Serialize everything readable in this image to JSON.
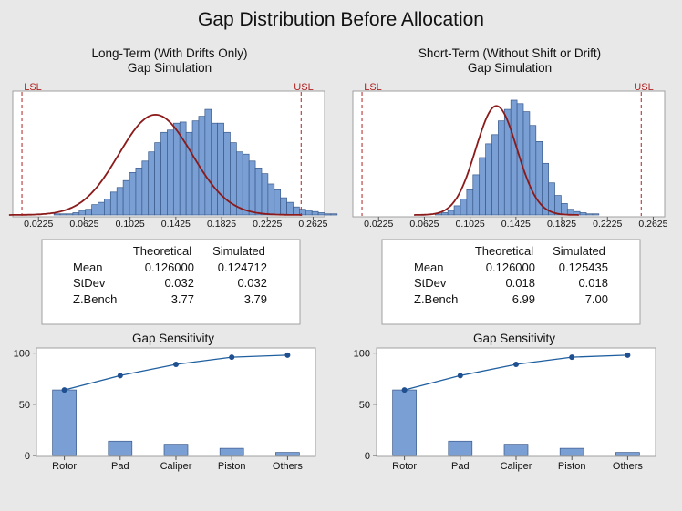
{
  "page_title": "Gap Distribution Before Allocation",
  "colors": {
    "background": "#e8e8e8",
    "bar_fill": "#7a9fd4",
    "bar_stroke": "#3a5a8a",
    "fit_curve": "#8b1a1a",
    "spec_line": "#b22222",
    "cum_line": "#1f5f9f"
  },
  "panels": [
    {
      "title_line1": "Long-Term (With Drifts Only)",
      "title_line2": "Gap Simulation",
      "lsl_label": "LSL",
      "usl_label": "USL",
      "table": {
        "headers": [
          "",
          "Theoretical",
          "Simulated"
        ],
        "rows": [
          {
            "label": "Mean",
            "theoretical": "0.126000",
            "simulated": "0.124712"
          },
          {
            "label": "StDev",
            "theoretical": "0.032",
            "simulated": "0.032"
          },
          {
            "label": "Z.Bench",
            "theoretical": "3.77",
            "simulated": "3.79"
          }
        ]
      },
      "sensitivity_title": "Gap Sensitivity"
    },
    {
      "title_line1": "Short-Term (Without Shift or Drift)",
      "title_line2": "Gap Simulation",
      "lsl_label": "LSL",
      "usl_label": "USL",
      "table": {
        "headers": [
          "",
          "Theoretical",
          "Simulated"
        ],
        "rows": [
          {
            "label": "Mean",
            "theoretical": "0.126000",
            "simulated": "0.125435"
          },
          {
            "label": "StDev",
            "theoretical": "0.018",
            "simulated": "0.018"
          },
          {
            "label": "Z.Bench",
            "theoretical": "6.99",
            "simulated": "7.00"
          }
        ]
      },
      "sensitivity_title": "Gap Sensitivity"
    }
  ],
  "chart_data": [
    {
      "type": "histogram",
      "title": "Long-Term (With Drifts Only) Gap Simulation",
      "x_ticks": [
        "0.0225",
        "0.0625",
        "0.1025",
        "0.1425",
        "0.1825",
        "0.2225",
        "0.2625"
      ],
      "xlim": [
        0.0,
        0.2725
      ],
      "lsl": 0.008,
      "usl": 0.252,
      "bin_width": 0.0055,
      "bin_start": 0.036,
      "bin_counts": [
        1,
        1,
        1,
        2,
        4,
        5,
        9,
        11,
        14,
        20,
        24,
        30,
        37,
        41,
        47,
        55,
        63,
        72,
        74,
        80,
        81,
        72,
        82,
        86,
        92,
        80,
        80,
        72,
        63,
        55,
        53,
        47,
        41,
        36,
        27,
        22,
        15,
        11,
        7,
        5,
        4,
        3,
        2,
        1,
        1
      ],
      "fit": {
        "distribution": "normal",
        "mean": 0.124712,
        "stdev": 0.032
      },
      "ylim": [
        0,
        100
      ]
    },
    {
      "type": "histogram",
      "title": "Short-Term (Without Shift or Drift) Gap Simulation",
      "x_ticks": [
        "0.0225",
        "0.0625",
        "0.1025",
        "0.1425",
        "0.1825",
        "0.2225",
        "0.2625"
      ],
      "xlim": [
        0.0,
        0.2725
      ],
      "lsl": 0.008,
      "usl": 0.252,
      "bin_width": 0.0055,
      "bin_start": 0.072,
      "bin_counts": [
        1,
        2,
        4,
        8,
        14,
        22,
        35,
        50,
        62,
        70,
        82,
        92,
        100,
        97,
        90,
        78,
        64,
        45,
        28,
        17,
        10,
        5,
        3,
        2,
        1,
        1
      ],
      "fit": {
        "distribution": "normal",
        "mean": 0.125435,
        "stdev": 0.018
      },
      "ylim": [
        0,
        100
      ]
    },
    {
      "type": "bar",
      "title": "Gap Sensitivity",
      "categories": [
        "Rotor",
        "Pad",
        "Caliper",
        "Piston",
        "Others"
      ],
      "values": [
        64,
        14,
        11,
        7,
        3
      ],
      "cumulative": [
        64,
        78,
        89,
        96,
        98
      ],
      "y_ticks": [
        "0",
        "50",
        "100"
      ],
      "ylim": [
        0,
        105
      ]
    },
    {
      "type": "bar",
      "title": "Gap Sensitivity",
      "categories": [
        "Rotor",
        "Pad",
        "Caliper",
        "Piston",
        "Others"
      ],
      "values": [
        64,
        14,
        11,
        7,
        3
      ],
      "cumulative": [
        64,
        78,
        89,
        96,
        98
      ],
      "y_ticks": [
        "0",
        "50",
        "100"
      ],
      "ylim": [
        0,
        105
      ]
    }
  ]
}
